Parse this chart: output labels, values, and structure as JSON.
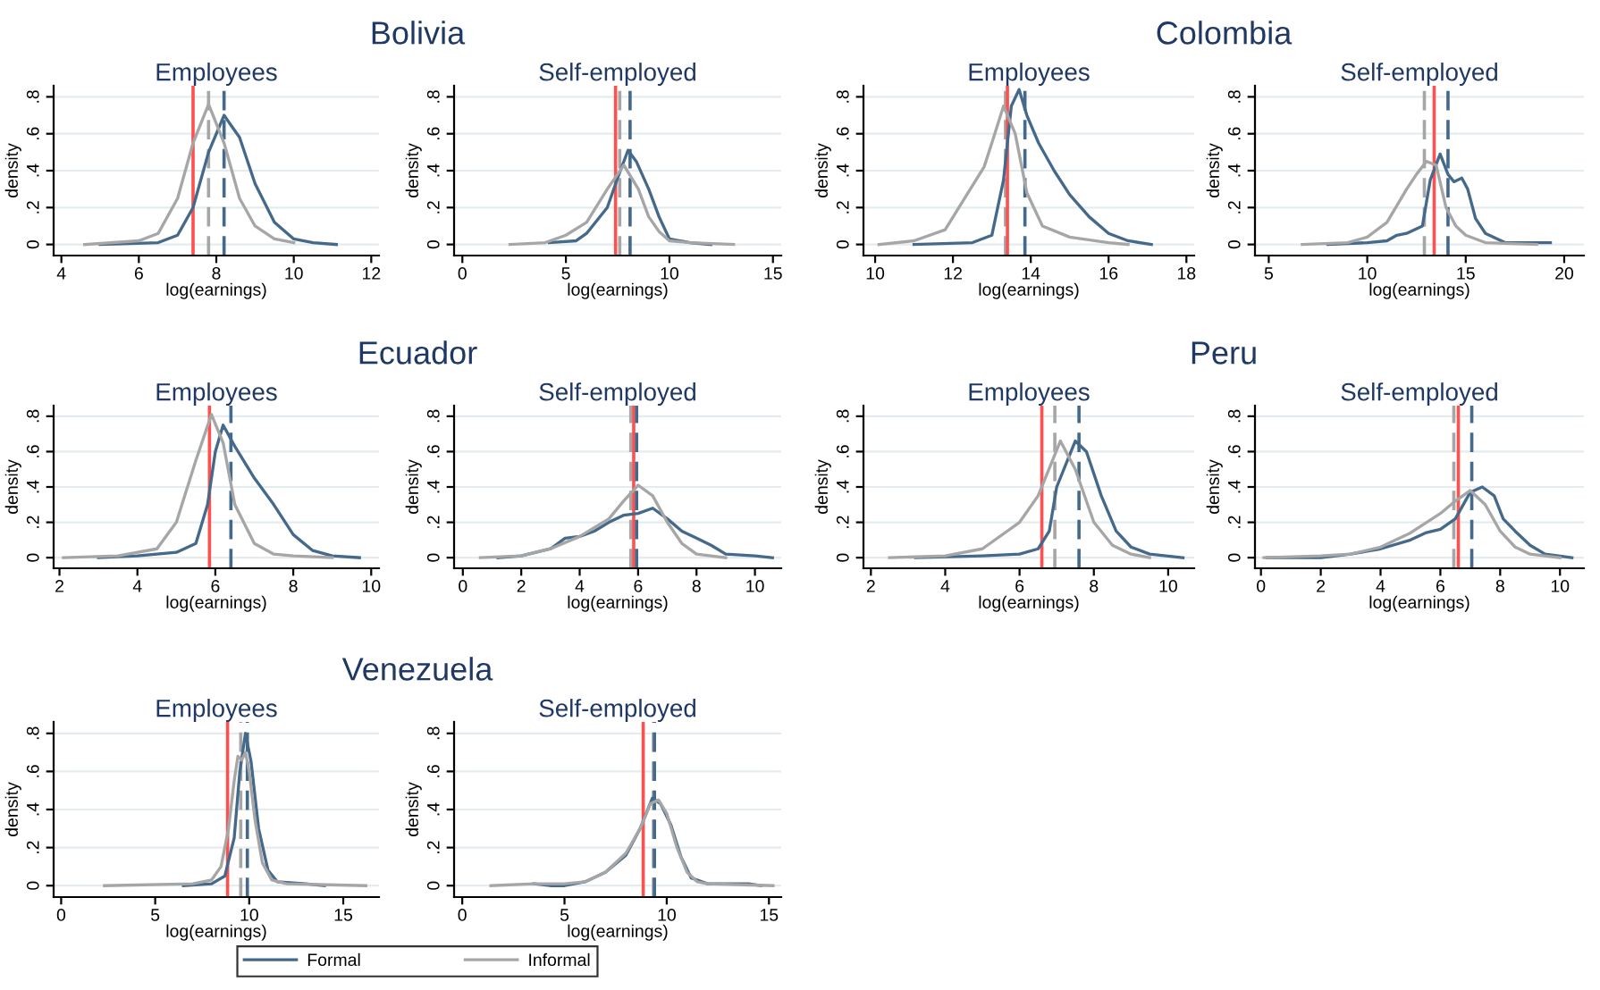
{
  "chart_data": [
    {
      "type": "line",
      "title": "Bolivia",
      "subtitle": "Employees",
      "xlabel": "log(earnings)",
      "ylabel": "density",
      "xlim": [
        3.8,
        12.2
      ],
      "xticks": [
        4,
        6,
        8,
        10,
        12
      ],
      "ylim": [
        -0.06,
        0.86
      ],
      "yticks": [
        0,
        {
          "value": 0.2,
          "label": ".2"
        },
        {
          "value": 0.4,
          "label": ".4"
        },
        {
          "value": 0.6,
          "label": ".6"
        },
        {
          "value": 0.8,
          "label": ".8"
        }
      ],
      "grid": "y",
      "legend": false,
      "series": [
        {
          "color": "#44698a",
          "x": [
            5.0,
            6.5,
            7.0,
            7.4,
            7.8,
            8.2,
            8.6,
            9.0,
            9.5,
            10.0,
            10.5,
            11.1
          ],
          "values": [
            0,
            0.01,
            0.05,
            0.2,
            0.5,
            0.7,
            0.58,
            0.33,
            0.12,
            0.03,
            0.01,
            0
          ]
        },
        {
          "color": "#a6a6a6",
          "x": [
            4.6,
            6.0,
            6.5,
            7.0,
            7.4,
            7.8,
            8.2,
            8.6,
            9.0,
            9.5,
            10.0
          ],
          "values": [
            0,
            0.02,
            0.06,
            0.25,
            0.55,
            0.76,
            0.55,
            0.25,
            0.1,
            0.03,
            0.01
          ]
        }
      ],
      "ref_lines": [
        {
          "axis": "x",
          "value": 7.4,
          "color": "#ff5050",
          "line_style": "solid"
        },
        {
          "axis": "x",
          "value": 7.8,
          "color": "#a6a6a6",
          "line_style": "dashed"
        },
        {
          "axis": "x",
          "value": 8.2,
          "color": "#44698a",
          "line_style": "dashed"
        }
      ]
    },
    {
      "type": "line",
      "subtitle": "Self-employed",
      "xlabel": "log(earnings)",
      "ylabel": "density",
      "xlim": [
        -0.4,
        15.4
      ],
      "xticks": [
        0,
        5,
        10,
        15
      ],
      "ylim": [
        -0.06,
        0.86
      ],
      "yticks": [
        0,
        {
          "value": 0.2,
          "label": ".2"
        },
        {
          "value": 0.4,
          "label": ".4"
        },
        {
          "value": 0.6,
          "label": ".6"
        },
        {
          "value": 0.8,
          "label": ".8"
        }
      ],
      "grid": "y",
      "legend": false,
      "series": [
        {
          "color": "#44698a",
          "x": [
            4.2,
            5.5,
            6.0,
            7.0,
            7.5,
            8.0,
            8.4,
            9.0,
            9.5,
            10.0,
            11.0,
            12.0
          ],
          "values": [
            0.01,
            0.02,
            0.06,
            0.2,
            0.36,
            0.51,
            0.45,
            0.3,
            0.15,
            0.03,
            0.01,
            0
          ]
        },
        {
          "color": "#a6a6a6",
          "x": [
            2.3,
            4.0,
            5.0,
            6.0,
            7.0,
            7.8,
            8.5,
            9.0,
            9.5,
            10.0,
            11.0,
            13.1
          ],
          "values": [
            0,
            0.01,
            0.05,
            0.12,
            0.3,
            0.43,
            0.3,
            0.15,
            0.07,
            0.02,
            0.01,
            0
          ]
        }
      ],
      "ref_lines": [
        {
          "axis": "x",
          "value": 7.4,
          "color": "#ff5050",
          "line_style": "solid"
        },
        {
          "axis": "x",
          "value": 7.6,
          "color": "#a6a6a6",
          "line_style": "dashed"
        },
        {
          "axis": "x",
          "value": 8.1,
          "color": "#44698a",
          "line_style": "dashed"
        }
      ]
    },
    {
      "type": "line",
      "title": "Colombia",
      "subtitle": "Employees",
      "xlabel": "log(earnings)",
      "ylabel": "density",
      "xlim": [
        9.7,
        18.2
      ],
      "xticks": [
        10,
        12,
        14,
        16,
        18
      ],
      "ylim": [
        -0.06,
        0.86
      ],
      "yticks": [
        0,
        {
          "value": 0.2,
          "label": ".2"
        },
        {
          "value": 0.4,
          "label": ".4"
        },
        {
          "value": 0.6,
          "label": ".6"
        },
        {
          "value": 0.8,
          "label": ".8"
        }
      ],
      "grid": "y",
      "legend": false,
      "series": [
        {
          "color": "#44698a",
          "x": [
            11.0,
            12.5,
            13.0,
            13.3,
            13.5,
            13.7,
            13.9,
            14.2,
            14.6,
            15.0,
            15.5,
            16.0,
            16.5,
            17.1
          ],
          "values": [
            0,
            0.01,
            0.05,
            0.35,
            0.75,
            0.84,
            0.7,
            0.55,
            0.4,
            0.27,
            0.15,
            0.06,
            0.02,
            0
          ]
        },
        {
          "color": "#a6a6a6",
          "x": [
            10.1,
            11.0,
            11.8,
            12.3,
            12.8,
            13.0,
            13.3,
            13.6,
            13.9,
            14.3,
            15.0,
            16.0,
            16.5
          ],
          "values": [
            0,
            0.02,
            0.08,
            0.25,
            0.42,
            0.55,
            0.75,
            0.6,
            0.28,
            0.1,
            0.04,
            0.01,
            0
          ]
        }
      ],
      "ref_lines": [
        {
          "axis": "x",
          "value": 13.35,
          "color": "#a6a6a6",
          "line_style": "dashed"
        },
        {
          "axis": "x",
          "value": 13.4,
          "color": "#ff5050",
          "line_style": "solid"
        },
        {
          "axis": "x",
          "value": 13.85,
          "color": "#44698a",
          "line_style": "dashed"
        }
      ]
    },
    {
      "type": "line",
      "subtitle": "Self-employed",
      "xlabel": "log(earnings)",
      "ylabel": "density",
      "xlim": [
        4.3,
        21.0
      ],
      "xticks": [
        5,
        10,
        15,
        20
      ],
      "ylim": [
        -0.06,
        0.86
      ],
      "yticks": [
        0,
        {
          "value": 0.2,
          "label": ".2"
        },
        {
          "value": 0.4,
          "label": ".4"
        },
        {
          "value": 0.6,
          "label": ".6"
        },
        {
          "value": 0.8,
          "label": ".8"
        }
      ],
      "grid": "y",
      "legend": false,
      "series": [
        {
          "color": "#44698a",
          "x": [
            8.0,
            10.0,
            11.0,
            11.5,
            12.0,
            12.8,
            13.2,
            13.7,
            14.1,
            14.4,
            14.8,
            15.1,
            15.5,
            16.0,
            17.0,
            19.3
          ],
          "values": [
            0,
            0.01,
            0.02,
            0.05,
            0.06,
            0.1,
            0.35,
            0.49,
            0.38,
            0.34,
            0.36,
            0.3,
            0.14,
            0.06,
            0.01,
            0.01
          ]
        },
        {
          "color": "#a6a6a6",
          "x": [
            6.7,
            9.0,
            10.0,
            11.0,
            12.0,
            12.5,
            13.0,
            13.5,
            14.0,
            14.5,
            15.0,
            16.0,
            18.6
          ],
          "values": [
            0,
            0.01,
            0.04,
            0.12,
            0.3,
            0.38,
            0.45,
            0.43,
            0.2,
            0.1,
            0.05,
            0.01,
            0
          ]
        }
      ],
      "ref_lines": [
        {
          "axis": "x",
          "value": 12.9,
          "color": "#a6a6a6",
          "line_style": "dashed"
        },
        {
          "axis": "x",
          "value": 13.4,
          "color": "#ff5050",
          "line_style": "solid"
        },
        {
          "axis": "x",
          "value": 14.1,
          "color": "#44698a",
          "line_style": "dashed"
        }
      ]
    },
    {
      "type": "line",
      "title": "Ecuador",
      "subtitle": "Employees",
      "xlabel": "log(earnings)",
      "ylabel": "density",
      "xlim": [
        1.85,
        10.2
      ],
      "xticks": [
        2,
        4,
        6,
        8,
        10
      ],
      "ylim": [
        -0.06,
        0.86
      ],
      "yticks": [
        0,
        {
          "value": 0.2,
          "label": ".2"
        },
        {
          "value": 0.4,
          "label": ".4"
        },
        {
          "value": 0.6,
          "label": ".6"
        },
        {
          "value": 0.8,
          "label": ".8"
        }
      ],
      "grid": "y",
      "legend": false,
      "series": [
        {
          "color": "#44698a",
          "x": [
            3.0,
            4.0,
            5.0,
            5.5,
            5.8,
            6.0,
            6.2,
            6.5,
            7.0,
            7.5,
            8.0,
            8.5,
            9.0,
            9.7
          ],
          "values": [
            0,
            0.01,
            0.03,
            0.08,
            0.3,
            0.6,
            0.75,
            0.63,
            0.45,
            0.3,
            0.13,
            0.04,
            0.01,
            0
          ]
        },
        {
          "color": "#a6a6a6",
          "x": [
            2.1,
            3.5,
            4.5,
            5.0,
            5.5,
            5.9,
            6.2,
            6.5,
            7.0,
            7.5,
            8.0,
            9.0
          ],
          "values": [
            0,
            0.01,
            0.05,
            0.2,
            0.55,
            0.81,
            0.65,
            0.3,
            0.08,
            0.02,
            0.01,
            0
          ]
        }
      ],
      "ref_lines": [
        {
          "axis": "x",
          "value": 5.85,
          "color": "#ff5050",
          "line_style": "solid"
        },
        {
          "axis": "x",
          "value": 6.4,
          "color": "#44698a",
          "line_style": "dashed"
        }
      ]
    },
    {
      "type": "line",
      "subtitle": "Self-employed",
      "xlabel": "log(earnings)",
      "ylabel": "density",
      "xlim": [
        -0.3,
        10.9
      ],
      "xticks": [
        0,
        2,
        4,
        6,
        8,
        10
      ],
      "ylim": [
        -0.06,
        0.86
      ],
      "yticks": [
        0,
        {
          "value": 0.2,
          "label": ".2"
        },
        {
          "value": 0.4,
          "label": ".4"
        },
        {
          "value": 0.6,
          "label": ".6"
        },
        {
          "value": 0.8,
          "label": ".8"
        }
      ],
      "grid": "y",
      "legend": false,
      "series": [
        {
          "color": "#44698a",
          "x": [
            1.2,
            2.0,
            3.0,
            3.5,
            4.0,
            4.5,
            5.0,
            5.5,
            6.0,
            6.5,
            7.0,
            7.5,
            8.0,
            8.5,
            9.0,
            10.0,
            10.6
          ],
          "values": [
            0,
            0.01,
            0.05,
            0.11,
            0.12,
            0.15,
            0.2,
            0.24,
            0.25,
            0.28,
            0.22,
            0.15,
            0.11,
            0.07,
            0.02,
            0.01,
            0
          ]
        },
        {
          "color": "#a6a6a6",
          "x": [
            0.6,
            2.0,
            3.0,
            4.0,
            5.0,
            5.5,
            6.0,
            6.5,
            7.0,
            7.5,
            8.0,
            9.0
          ],
          "values": [
            0,
            0.01,
            0.05,
            0.12,
            0.22,
            0.32,
            0.41,
            0.35,
            0.2,
            0.08,
            0.02,
            0
          ]
        }
      ],
      "ref_lines": [
        {
          "axis": "x",
          "value": 5.75,
          "color": "#a6a6a6",
          "line_style": "dashed"
        },
        {
          "axis": "x",
          "value": 5.85,
          "color": "#ff5050",
          "line_style": "solid"
        },
        {
          "axis": "x",
          "value": 5.95,
          "color": "#44698a",
          "line_style": "dashed"
        }
      ]
    },
    {
      "type": "line",
      "title": "Peru",
      "subtitle": "Employees",
      "xlabel": "log(earnings)",
      "ylabel": "density",
      "xlim": [
        1.8,
        10.7
      ],
      "xticks": [
        2,
        4,
        6,
        8,
        10
      ],
      "ylim": [
        -0.06,
        0.86
      ],
      "yticks": [
        0,
        {
          "value": 0.2,
          "label": ".2"
        },
        {
          "value": 0.4,
          "label": ".4"
        },
        {
          "value": 0.6,
          "label": ".6"
        },
        {
          "value": 0.8,
          "label": ".8"
        }
      ],
      "grid": "y",
      "legend": false,
      "series": [
        {
          "color": "#44698a",
          "x": [
            3.2,
            5.0,
            6.0,
            6.5,
            6.8,
            7.0,
            7.5,
            7.8,
            8.2,
            8.6,
            9.0,
            9.5,
            10.4
          ],
          "values": [
            0,
            0.01,
            0.02,
            0.05,
            0.15,
            0.4,
            0.66,
            0.6,
            0.35,
            0.15,
            0.06,
            0.02,
            0
          ]
        },
        {
          "color": "#a6a6a6",
          "x": [
            2.5,
            4.0,
            5.0,
            6.0,
            6.5,
            7.1,
            7.5,
            8.0,
            8.5,
            9.0,
            9.5
          ],
          "values": [
            0,
            0.01,
            0.05,
            0.2,
            0.35,
            0.66,
            0.5,
            0.2,
            0.07,
            0.02,
            0
          ]
        }
      ],
      "ref_lines": [
        {
          "axis": "x",
          "value": 6.6,
          "color": "#ff5050",
          "line_style": "solid"
        },
        {
          "axis": "x",
          "value": 6.95,
          "color": "#a6a6a6",
          "line_style": "dashed"
        },
        {
          "axis": "x",
          "value": 7.6,
          "color": "#44698a",
          "line_style": "dashed"
        }
      ]
    },
    {
      "type": "line",
      "subtitle": "Self-employed",
      "xlabel": "log(earnings)",
      "ylabel": "density",
      "xlim": [
        -0.2,
        10.8
      ],
      "xticks": [
        0,
        2,
        4,
        6,
        8,
        10
      ],
      "ylim": [
        -0.06,
        0.86
      ],
      "yticks": [
        0,
        {
          "value": 0.2,
          "label": ".2"
        },
        {
          "value": 0.4,
          "label": ".4"
        },
        {
          "value": 0.6,
          "label": ".6"
        },
        {
          "value": 0.8,
          "label": ".8"
        }
      ],
      "grid": "y",
      "legend": false,
      "series": [
        {
          "color": "#44698a",
          "x": [
            0.2,
            2.0,
            3.0,
            4.0,
            5.0,
            5.5,
            6.0,
            6.5,
            7.0,
            7.4,
            7.8,
            8.1,
            8.5,
            9.0,
            9.5,
            10.4
          ],
          "values": [
            0,
            0,
            0.02,
            0.05,
            0.1,
            0.14,
            0.16,
            0.22,
            0.37,
            0.4,
            0.35,
            0.22,
            0.15,
            0.07,
            0.02,
            0
          ]
        },
        {
          "color": "#a6a6a6",
          "x": [
            0.1,
            2.0,
            3.0,
            4.0,
            5.0,
            6.0,
            6.5,
            7.0,
            7.5,
            8.0,
            8.5,
            9.0,
            10.0
          ],
          "values": [
            0,
            0.01,
            0.02,
            0.06,
            0.14,
            0.25,
            0.32,
            0.38,
            0.3,
            0.15,
            0.06,
            0.02,
            0
          ]
        }
      ],
      "ref_lines": [
        {
          "axis": "x",
          "value": 6.45,
          "color": "#a6a6a6",
          "line_style": "dashed"
        },
        {
          "axis": "x",
          "value": 6.6,
          "color": "#ff5050",
          "line_style": "solid"
        },
        {
          "axis": "x",
          "value": 7.05,
          "color": "#44698a",
          "line_style": "dashed"
        }
      ]
    },
    {
      "type": "line",
      "title": "Venezuela",
      "subtitle": "Employees",
      "xlabel": "log(earnings)",
      "ylabel": "density",
      "xlim": [
        -0.4,
        16.9
      ],
      "xticks": [
        0,
        5,
        10,
        15
      ],
      "ylim": [
        -0.06,
        0.86
      ],
      "yticks": [
        0,
        {
          "value": 0.2,
          "label": ".2"
        },
        {
          "value": 0.4,
          "label": ".4"
        },
        {
          "value": 0.6,
          "label": ".6"
        },
        {
          "value": 0.8,
          "label": ".8"
        }
      ],
      "grid": "y",
      "legend": false,
      "series": [
        {
          "color": "#44698a",
          "x": [
            6.5,
            8.0,
            8.7,
            9.2,
            9.5,
            9.8,
            10.1,
            10.5,
            11.0,
            11.5,
            13.0,
            14.0
          ],
          "values": [
            0,
            0.01,
            0.05,
            0.25,
            0.6,
            0.8,
            0.65,
            0.3,
            0.08,
            0.02,
            0.01,
            0
          ]
        },
        {
          "color": "#a6a6a6",
          "x": [
            2.3,
            7.0,
            8.0,
            8.5,
            8.9,
            9.2,
            9.4,
            9.6,
            9.8,
            10.0,
            10.3,
            10.7,
            11.2,
            12.0,
            16.2
          ],
          "values": [
            0,
            0.01,
            0.03,
            0.1,
            0.3,
            0.55,
            0.68,
            0.66,
            0.7,
            0.6,
            0.35,
            0.12,
            0.03,
            0.01,
            0
          ]
        }
      ],
      "ref_lines": [
        {
          "axis": "x",
          "value": 8.85,
          "color": "#ff5050",
          "line_style": "solid"
        },
        {
          "axis": "x",
          "value": 9.55,
          "color": "#a6a6a6",
          "line_style": "dashed"
        },
        {
          "axis": "x",
          "value": 9.9,
          "color": "#44698a",
          "line_style": "dashed"
        }
      ]
    },
    {
      "type": "line",
      "subtitle": "Self-employed",
      "xlabel": "log(earnings)",
      "ylabel": "density",
      "xlim": [
        -0.4,
        15.6
      ],
      "xticks": [
        0,
        5,
        10,
        15
      ],
      "ylim": [
        -0.06,
        0.86
      ],
      "yticks": [
        0,
        {
          "value": 0.2,
          "label": ".2"
        },
        {
          "value": 0.4,
          "label": ".4"
        },
        {
          "value": 0.6,
          "label": ".6"
        },
        {
          "value": 0.8,
          "label": ".8"
        }
      ],
      "grid": "y",
      "legend": "bottom",
      "series": [
        {
          "name": "Formal",
          "color": "#44698a",
          "x": [
            3.5,
            4.3,
            5.0,
            6.0,
            7.0,
            8.0,
            8.7,
            9.3,
            9.7,
            10.2,
            10.7,
            11.2,
            12.0,
            14.0,
            14.6
          ],
          "values": [
            0.01,
            0,
            0,
            0.02,
            0.07,
            0.16,
            0.3,
            0.46,
            0.43,
            0.32,
            0.15,
            0.04,
            0.01,
            0.01,
            0
          ]
        },
        {
          "name": "Informal",
          "color": "#a6a6a6",
          "x": [
            1.4,
            3.5,
            5.0,
            6.0,
            7.0,
            8.0,
            8.7,
            9.2,
            9.6,
            10.0,
            10.5,
            11.0,
            11.5,
            12.0,
            15.2
          ],
          "values": [
            0,
            0.01,
            0.01,
            0.02,
            0.07,
            0.17,
            0.3,
            0.43,
            0.45,
            0.38,
            0.2,
            0.07,
            0.02,
            0.01,
            0
          ]
        }
      ],
      "ref_lines": [
        {
          "axis": "x",
          "value": 8.85,
          "color": "#ff5050",
          "line_style": "solid"
        },
        {
          "axis": "x",
          "value": 9.35,
          "color": "#a6a6a6",
          "line_style": "dashed"
        },
        {
          "axis": "x",
          "value": 9.4,
          "color": "#44698a",
          "line_style": "dashed"
        }
      ]
    }
  ]
}
